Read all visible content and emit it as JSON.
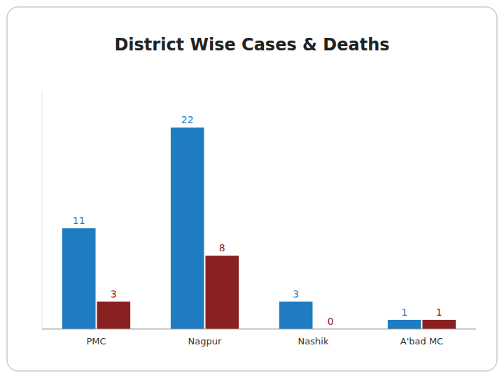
{
  "chart_data": {
    "type": "bar",
    "title": "District Wise Cases & Deaths",
    "categories": [
      "PMC",
      "Nagpur",
      "Nashik",
      "A'bad MC"
    ],
    "series": [
      {
        "color": "#1F7CC1",
        "values": [
          11,
          22,
          3,
          1
        ]
      },
      {
        "color": "#8B2020",
        "values": [
          3,
          8,
          0,
          1
        ]
      }
    ],
    "ylim": [
      0,
      26
    ],
    "grid": false,
    "data_labels": true,
    "tick_labels": "x"
  }
}
